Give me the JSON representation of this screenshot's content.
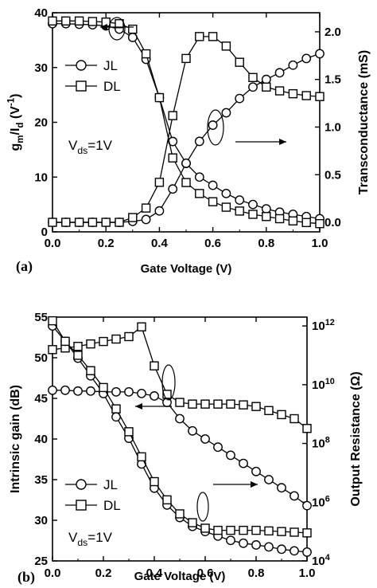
{
  "chart_data": [
    {
      "type": "scatter",
      "panel_label": "(a)",
      "xlabel": "Gate Voltage (V)",
      "xlim": [
        0.0,
        1.0
      ],
      "xticks": [
        "0.0",
        "0.2",
        "0.4",
        "0.6",
        "0.8",
        "1.0"
      ],
      "ylabel_left": "g_m/I_d (V^-1)",
      "ylim_left": [
        0,
        40
      ],
      "yticks_left": [
        "0",
        "10",
        "20",
        "30",
        "40"
      ],
      "ylabel_right": "Transconductance (mS)",
      "ylim_right": [
        -0.1,
        2.2
      ],
      "yticks_right": [
        "0.0",
        "0.5",
        "1.0",
        "1.5",
        "2.0"
      ],
      "annotation": "V_ds=1V",
      "legend": {
        "placement": "upper-left",
        "entries": [
          "JL",
          "DL"
        ]
      },
      "series": [
        {
          "name": "JL",
          "marker": "circle",
          "axis": "left",
          "x": [
            0.0,
            0.05,
            0.1,
            0.15,
            0.2,
            0.25,
            0.3,
            0.35,
            0.4,
            0.45,
            0.5,
            0.55,
            0.6,
            0.65,
            0.7,
            0.75,
            0.8,
            0.85,
            0.9,
            0.95,
            1.0
          ],
          "values": [
            38.0,
            38.0,
            37.9,
            37.8,
            37.6,
            37.0,
            35.5,
            31.5,
            24.5,
            16.5,
            12.5,
            10.0,
            8.5,
            7.0,
            5.8,
            5.0,
            4.2,
            3.6,
            3.2,
            2.8,
            2.4
          ]
        },
        {
          "name": "DL",
          "marker": "square",
          "axis": "left",
          "x": [
            0.0,
            0.05,
            0.1,
            0.15,
            0.2,
            0.25,
            0.3,
            0.35,
            0.4,
            0.45,
            0.5,
            0.55,
            0.6,
            0.65,
            0.7,
            0.75,
            0.8,
            0.85,
            0.9,
            0.95,
            1.0
          ],
          "values": [
            38.5,
            38.5,
            38.5,
            38.4,
            38.3,
            38.0,
            37.0,
            32.5,
            24.5,
            13.5,
            9.0,
            7.0,
            5.5,
            4.5,
            3.8,
            3.2,
            2.8,
            2.4,
            2.0,
            1.7,
            1.5
          ]
        },
        {
          "name": "JL",
          "marker": "circle",
          "axis": "right",
          "x": [
            0.0,
            0.05,
            0.1,
            0.15,
            0.2,
            0.25,
            0.3,
            0.35,
            0.4,
            0.45,
            0.5,
            0.55,
            0.6,
            0.65,
            0.7,
            0.75,
            0.8,
            0.85,
            0.9,
            0.95,
            1.0
          ],
          "values": [
            0.0,
            0.0,
            0.0,
            0.0,
            0.0,
            0.0,
            0.01,
            0.03,
            0.12,
            0.35,
            0.62,
            0.85,
            1.02,
            1.15,
            1.3,
            1.42,
            1.5,
            1.57,
            1.65,
            1.72,
            1.77
          ]
        },
        {
          "name": "DL",
          "marker": "square",
          "axis": "right",
          "x": [
            0.0,
            0.05,
            0.1,
            0.15,
            0.2,
            0.25,
            0.3,
            0.35,
            0.4,
            0.45,
            0.5,
            0.55,
            0.6,
            0.65,
            0.7,
            0.75,
            0.8,
            0.85,
            0.9,
            0.95,
            1.0
          ],
          "values": [
            0.0,
            0.0,
            0.0,
            0.0,
            0.0,
            0.0,
            0.05,
            0.15,
            0.42,
            1.12,
            1.72,
            1.95,
            1.95,
            1.85,
            1.68,
            1.52,
            1.42,
            1.38,
            1.35,
            1.33,
            1.32
          ]
        }
      ]
    },
    {
      "type": "scatter",
      "panel_label": "(b)",
      "xlabel": "Gate Voltage (V)",
      "xlim": [
        0.0,
        1.0
      ],
      "xticks": [
        "0.0",
        "0.2",
        "0.4",
        "0.6",
        "0.8",
        "1.0"
      ],
      "ylabel_left": "Intrinsic gain (dB)",
      "ylim_left": [
        25,
        55
      ],
      "yticks_left": [
        "25",
        "30",
        "35",
        "40",
        "45",
        "50",
        "55"
      ],
      "ylabel_right": "Output Resistance (Ω)",
      "ylim_right": [
        10000,
        2000000000000
      ],
      "yscale_right": "log",
      "yticks_right": [
        "10^4",
        "10^6",
        "10^8",
        "10^10",
        "10^12"
      ],
      "annotation": "V_ds=1V",
      "legend": {
        "placement": "lower-left",
        "entries": [
          "JL",
          "DL"
        ]
      },
      "series": [
        {
          "name": "JL",
          "marker": "circle",
          "axis": "left",
          "x": [
            0.0,
            0.05,
            0.1,
            0.15,
            0.2,
            0.25,
            0.3,
            0.35,
            0.4,
            0.45,
            0.5,
            0.55,
            0.6,
            0.65,
            0.7,
            0.75,
            0.8,
            0.85,
            0.9,
            0.95,
            1.0
          ],
          "values": [
            46.0,
            46.0,
            45.9,
            45.9,
            45.8,
            45.8,
            45.8,
            45.6,
            45.3,
            44.5,
            42.5,
            41.0,
            40.0,
            39.0,
            38.0,
            37.0,
            36.0,
            35.0,
            34.0,
            33.0,
            31.8
          ]
        },
        {
          "name": "DL",
          "marker": "square",
          "axis": "left",
          "x": [
            0.0,
            0.05,
            0.1,
            0.15,
            0.2,
            0.25,
            0.3,
            0.35,
            0.4,
            0.45,
            0.5,
            0.55,
            0.6,
            0.65,
            0.7,
            0.75,
            0.8,
            0.85,
            0.9,
            0.95,
            1.0
          ],
          "values": [
            51.0,
            51.2,
            51.4,
            51.7,
            52.0,
            52.3,
            52.6,
            53.8,
            49.0,
            45.5,
            44.5,
            44.3,
            44.3,
            44.3,
            44.3,
            44.2,
            44.0,
            43.5,
            43.0,
            42.5,
            41.3
          ]
        },
        {
          "name": "JL",
          "marker": "circle",
          "axis": "right",
          "x": [
            0.0,
            0.05,
            0.1,
            0.15,
            0.2,
            0.25,
            0.3,
            0.35,
            0.4,
            0.45,
            0.5,
            0.55,
            0.6,
            0.65,
            0.7,
            0.75,
            0.8,
            0.85,
            0.9,
            0.95,
            1.0
          ],
          "values": [
            1000000000000,
            300000000000,
            80000000000,
            20000000000,
            5000000000,
            800000000,
            150000000,
            20000000,
            3000000,
            800000,
            300000,
            150000,
            100000,
            70000,
            50000,
            40000,
            35000,
            30000,
            25000,
            22000,
            20000
          ]
        },
        {
          "name": "DL",
          "marker": "square",
          "axis": "right",
          "x": [
            0.0,
            0.05,
            0.1,
            0.15,
            0.2,
            0.25,
            0.3,
            0.35,
            0.4,
            0.45,
            0.5,
            0.55,
            0.6,
            0.65,
            0.7,
            0.75,
            0.8,
            0.85,
            0.9,
            0.95,
            1.0
          ],
          "values": [
            1500000000000,
            300000000000,
            100000000000,
            30000000000,
            8000000000,
            1500000000,
            250000000,
            35000000,
            5000000,
            1200000,
            400000,
            200000,
            130000,
            110000,
            110000,
            110000,
            110000,
            105000,
            100000,
            95000,
            90000
          ]
        }
      ]
    }
  ]
}
